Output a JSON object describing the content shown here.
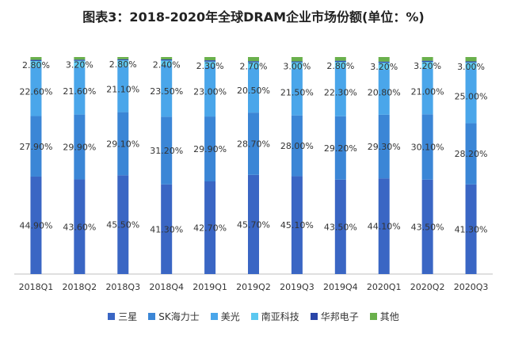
{
  "chart_data": {
    "type": "bar",
    "stacked": true,
    "title": "图表3：2018-2020年全球DRAM企业市场份额(单位：%)",
    "categories": [
      "2018Q1",
      "2018Q2",
      "2018Q3",
      "2018Q4",
      "2019Q1",
      "2019Q2",
      "2019Q3",
      "2019Q4",
      "2020Q1",
      "2020Q2",
      "2020Q3"
    ],
    "ylim": [
      0,
      100
    ],
    "xlabel": "",
    "ylabel": "",
    "grid": false,
    "legend_position": "bottom",
    "series": [
      {
        "name": "三星",
        "color": "#3a66c4",
        "values": [
          44.9,
          43.6,
          45.5,
          41.3,
          42.7,
          45.7,
          45.1,
          43.5,
          44.1,
          43.5,
          41.3
        ],
        "labels": [
          "44.90%",
          "43.60%",
          "45.50%",
          "41.30%",
          "42.70%",
          "45.70%",
          "45.10%",
          "43.50%",
          "44.10%",
          "43.50%",
          "41.30%"
        ]
      },
      {
        "name": "SK海力士",
        "color": "#3b86d6",
        "values": [
          27.9,
          29.9,
          29.1,
          31.2,
          29.9,
          28.7,
          28.0,
          29.2,
          29.3,
          30.1,
          28.2
        ],
        "labels": [
          "27.90%",
          "29.90%",
          "29.10%",
          "31.20%",
          "29.90%",
          "28.70%",
          "28.00%",
          "29.20%",
          "29.30%",
          "30.10%",
          "28.20%"
        ]
      },
      {
        "name": "美光",
        "color": "#4aa6ea",
        "values": [
          22.6,
          21.6,
          21.1,
          23.5,
          23.0,
          20.5,
          21.5,
          22.3,
          20.8,
          21.0,
          25.0
        ],
        "labels": [
          "22.60%",
          "21.60%",
          "21.10%",
          "23.50%",
          "23.00%",
          "20.50%",
          "21.50%",
          "22.30%",
          "20.80%",
          "21.00%",
          "25.00%"
        ]
      },
      {
        "name": "南亚科技",
        "color": "#5cc8f0",
        "values": [
          2.8,
          3.2,
          2.8,
          2.4,
          2.3,
          2.7,
          3.0,
          2.8,
          3.2,
          3.2,
          3.0
        ],
        "labels": [
          "2.80%",
          "3.20%",
          "2.80%",
          "2.40%",
          "2.30%",
          "2.70%",
          "3.00%",
          "2.80%",
          "3.20%",
          "3.20%",
          "3.00%"
        ]
      },
      {
        "name": "华邦电子",
        "color": "#2a45a8",
        "values": [
          0.5,
          0.5,
          0.5,
          0.5,
          0.6,
          0.5,
          0.4,
          0.5,
          0.5,
          0.5,
          0.5
        ],
        "labels": []
      },
      {
        "name": "其他",
        "color": "#6ab04c",
        "values": [
          1.3,
          1.2,
          1.0,
          1.1,
          1.5,
          1.9,
          2.0,
          1.7,
          2.1,
          1.7,
          2.0
        ],
        "labels": []
      }
    ]
  }
}
